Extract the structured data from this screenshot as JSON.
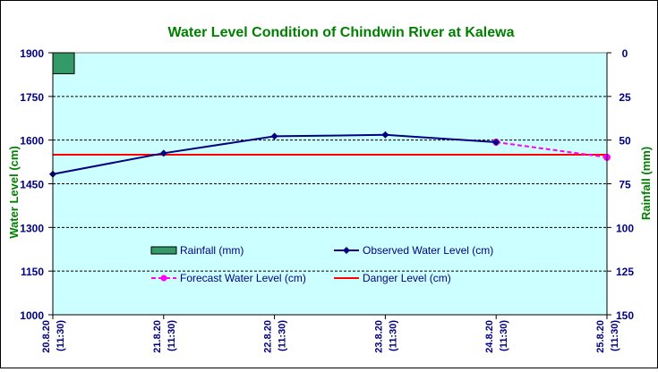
{
  "colors": {
    "plot_bg": "#ccffff",
    "title_green": "#008000",
    "axis_blue": "#000080",
    "observed": "#000080",
    "forecast": "#ff00ff",
    "danger": "#ff0000",
    "rainfall": "#339966"
  },
  "chart_data": {
    "type": "line",
    "title": "Water Level Condition of Chindwin River at  Kalewa",
    "ylabel": "Water Level (cm)",
    "y2label": "Rainfall (mm)",
    "ylim": [
      1000,
      1900
    ],
    "y2lim": [
      150,
      0
    ],
    "yticks": [
      "1900",
      "1750",
      "1600",
      "1450",
      "1300",
      "1150",
      "1000"
    ],
    "y2ticks": [
      "0",
      "25",
      "50",
      "75",
      "100",
      "125",
      "150"
    ],
    "categories": [
      {
        "date": "20.8.20",
        "time": "(11:30)"
      },
      {
        "date": "21.8.20",
        "time": "(11:30)"
      },
      {
        "date": "22.8.20",
        "time": "(11:30)"
      },
      {
        "date": "23.8.20",
        "time": "(11:30)"
      },
      {
        "date": "24.8.20",
        "time": "(11:30)"
      },
      {
        "date": "25.8.20",
        "time": "(11:30)"
      }
    ],
    "grid": true,
    "series": [
      {
        "key": "rainfall",
        "name": "Rainfall (mm)",
        "kind": "bar",
        "axis": "right",
        "values": [
          12,
          null,
          null,
          null,
          null,
          null
        ]
      },
      {
        "key": "observed",
        "name": "Observed Water Level (cm)",
        "kind": "line",
        "axis": "left",
        "values": [
          1483,
          1555,
          1613,
          1618,
          1593,
          null
        ]
      },
      {
        "key": "forecast",
        "name": "Forecast Water Level (cm)",
        "kind": "line-dashed",
        "axis": "left",
        "values": [
          null,
          null,
          null,
          null,
          1593,
          1541
        ]
      },
      {
        "key": "danger",
        "name": "Danger Level (cm)",
        "kind": "hline",
        "axis": "left",
        "value": 1550
      }
    ],
    "legend_position": "bottom-inside"
  }
}
